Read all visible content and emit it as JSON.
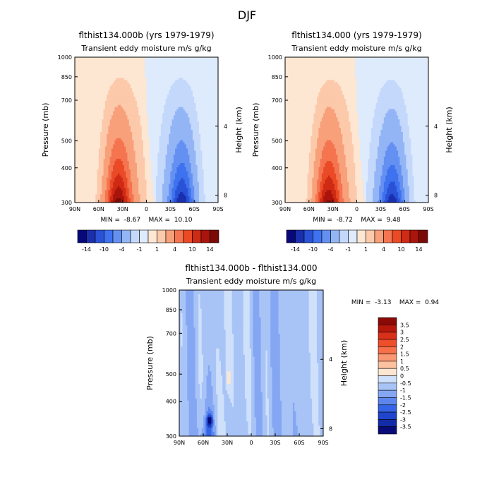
{
  "figure": {
    "title": "DJF"
  },
  "chart_data": [
    {
      "type": "heatmap",
      "title": "flthist134.000b (yrs 1979-1979)",
      "subtitle": "Transient eddy moisture m/s g/kg",
      "xlabel": "",
      "ylabel": "Pressure (mb)",
      "y2label": "Height (km)",
      "x_ticks": [
        "90N",
        "60N",
        "30N",
        "0",
        "30S",
        "60S",
        "90S"
      ],
      "x_range": [
        "90N",
        "90S"
      ],
      "y_ticks": [
        300,
        400,
        500,
        700,
        850,
        1000
      ],
      "y_range": [
        1000,
        300
      ],
      "y_scale": "log",
      "y2_ticks": [
        4,
        8
      ],
      "stats": "MIN =  -8.67    MAX =  10.10",
      "colorbar_labels": [
        "-14",
        "-10",
        "-4",
        "-1",
        "1",
        "4",
        "10",
        "14"
      ],
      "colorbar_colors": [
        "#08087a",
        "#1a2fae",
        "#2a52d6",
        "#3f72ee",
        "#6490f2",
        "#93b5f6",
        "#c4d8fb",
        "#deebfd",
        "#fde6d2",
        "#fcc9ab",
        "#f8a07a",
        "#f47550",
        "#ea4a26",
        "#cf2a14",
        "#a9150c",
        "#7b0a06"
      ]
    },
    {
      "type": "heatmap",
      "title": "flthist134.000 (yrs 1979-1979)",
      "subtitle": "Transient eddy moisture m/s g/kg",
      "xlabel": "",
      "ylabel": "Pressure (mb)",
      "y2label": "Height (km)",
      "x_ticks": [
        "90N",
        "60N",
        "30N",
        "0",
        "30S",
        "60S",
        "90S"
      ],
      "x_range": [
        "90N",
        "90S"
      ],
      "y_ticks": [
        300,
        400,
        500,
        700,
        850,
        1000
      ],
      "y_range": [
        1000,
        300
      ],
      "y_scale": "log",
      "y2_ticks": [
        4,
        8
      ],
      "stats": "MIN =  -8.72    MAX =  9.48",
      "colorbar_labels": [
        "-14",
        "-10",
        "-4",
        "-1",
        "1",
        "4",
        "10",
        "14"
      ],
      "colorbar_colors": [
        "#08087a",
        "#1a2fae",
        "#2a52d6",
        "#3f72ee",
        "#6490f2",
        "#93b5f6",
        "#c4d8fb",
        "#deebfd",
        "#fde6d2",
        "#fcc9ab",
        "#f8a07a",
        "#f47550",
        "#ea4a26",
        "#cf2a14",
        "#a9150c",
        "#7b0a06"
      ]
    },
    {
      "type": "heatmap",
      "title": "flthist134.000b - flthist134.000",
      "subtitle": "Transient eddy moisture m/s g/kg",
      "xlabel": "",
      "ylabel": "Pressure (mb)",
      "y2label": "Height (km)",
      "x_ticks": [
        "90N",
        "60N",
        "30N",
        "0",
        "30S",
        "60S",
        "90S"
      ],
      "x_range": [
        "90N",
        "90S"
      ],
      "y_ticks": [
        300,
        400,
        500,
        700,
        850,
        1000
      ],
      "y_range": [
        1000,
        300
      ],
      "y_scale": "log",
      "y2_ticks": [
        4,
        8
      ],
      "stats": "MIN =  -3.13    MAX =  0.94",
      "colorbar_labels": [
        "3.5",
        "3",
        "2.5",
        "2",
        "1.5",
        "1",
        "0.5",
        "0",
        "-0.5",
        "-1",
        "-1.5",
        "-2",
        "-2.5",
        "-3",
        "-3.5"
      ],
      "colorbar_colors": [
        "#8b0a06",
        "#b8180c",
        "#d9301a",
        "#ee4e2a",
        "#f6714a",
        "#f99872",
        "#fcc19f",
        "#fde6d2",
        "#cfe0fb",
        "#a8c4f7",
        "#85a7f3",
        "#5c86ee",
        "#3565e6",
        "#1f45cc",
        "#122ba6",
        "#070c78"
      ]
    }
  ]
}
